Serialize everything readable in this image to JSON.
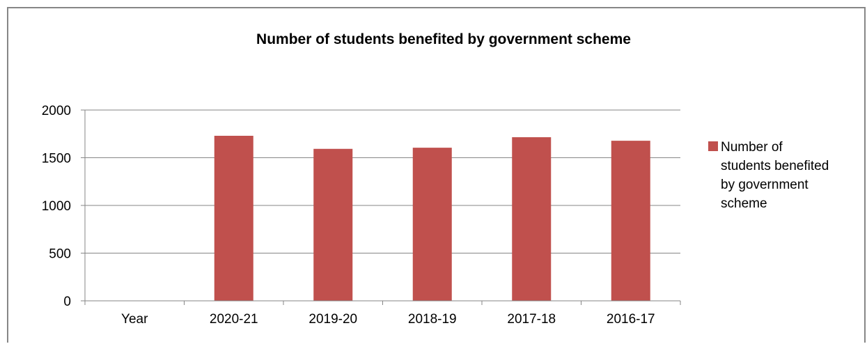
{
  "chart_data": {
    "type": "bar",
    "title": "Number of students benefited by government scheme",
    "categories": [
      "Year",
      "2020-21",
      "2019-20",
      "2018-19",
      "2017-18",
      "2016-17"
    ],
    "series": [
      {
        "name": "Number of students benefited by government scheme",
        "values": [
          null,
          1730,
          1593,
          1605,
          1715,
          1678
        ],
        "color": "#c0504d"
      }
    ],
    "xlabel": "",
    "ylabel": "",
    "ylim": [
      0,
      2000
    ],
    "yticks": [
      0,
      500,
      1000,
      1500,
      2000
    ],
    "grid": true,
    "legend_position": "right",
    "legend_lines": [
      "Number of",
      "students benefited",
      "by government",
      "scheme"
    ],
    "colors": {
      "gridline": "#868686",
      "axis": "#868686"
    }
  }
}
